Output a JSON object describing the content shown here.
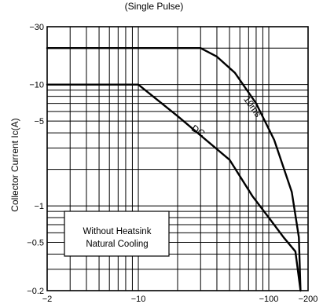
{
  "chart_data": {
    "type": "line",
    "title": "(Single Pulse)",
    "xlabel": "",
    "ylabel": "Collector Current Ic(A)",
    "x_scale": "log",
    "y_scale": "log",
    "xlim": [
      -2,
      -200
    ],
    "ylim": [
      -0.2,
      -30
    ],
    "x_tick_labels": [
      "−2",
      "−10",
      "−100",
      "−200"
    ],
    "y_tick_labels": [
      "−30",
      "−10",
      "−5",
      "−1",
      "−0.5",
      "−0.2"
    ],
    "grid": true,
    "legend_box": {
      "line1": "Without Heatsink",
      "line2": "Natural Cooling"
    },
    "series": [
      {
        "name": "10ms",
        "x": [
          -2,
          -30,
          -40,
          -55,
          -80,
          -110,
          -150,
          -170,
          -175
        ],
        "y": [
          -20,
          -20,
          -17,
          -12.5,
          -7,
          -3.5,
          -1.3,
          -0.55,
          -0.2
        ]
      },
      {
        "name": "DC",
        "x": [
          -2,
          -10,
          -20,
          -50,
          -75,
          -100,
          -130,
          -160,
          -175
        ],
        "y": [
          -10,
          -10,
          -5.5,
          -2.4,
          -1.2,
          -0.8,
          -0.55,
          -0.42,
          -0.2
        ]
      }
    ]
  }
}
